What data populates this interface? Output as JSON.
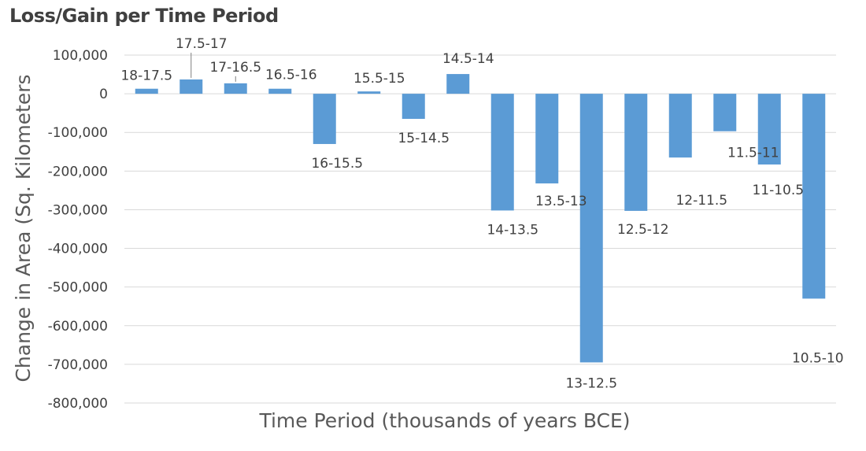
{
  "chart_data": {
    "type": "bar",
    "title": "Loss/Gain per Time Period",
    "xlabel": "Time Period (thousands of years BCE)",
    "ylabel": "Change in Area (Sq. Kilometers",
    "ylim": [
      -800000,
      100000
    ],
    "ytick_step": 100000,
    "yticks": [
      "100,000",
      "0",
      "-100,000",
      "-200,000",
      "-300,000",
      "-400,000",
      "-500,000",
      "-600,000",
      "-700,000",
      "-800,000"
    ],
    "grid": true,
    "legend": "none",
    "bar_color": "#5b9bd5",
    "categories": [
      "18-17.5",
      "17.5-17",
      "17-16.5",
      "16.5-16",
      "16-15.5",
      "15.5-15",
      "15-14.5",
      "14.5-14",
      "14-13.5",
      "13.5-13",
      "13-12.5",
      "12.5-12",
      "12-11.5",
      "11.5-11",
      "11-10.5",
      "10.5-10"
    ],
    "values": [
      13000,
      37000,
      27000,
      13000,
      -130000,
      6000,
      -65000,
      51000,
      -302000,
      -232000,
      -695000,
      -303000,
      -165000,
      -97000,
      -183000,
      -530000
    ]
  }
}
